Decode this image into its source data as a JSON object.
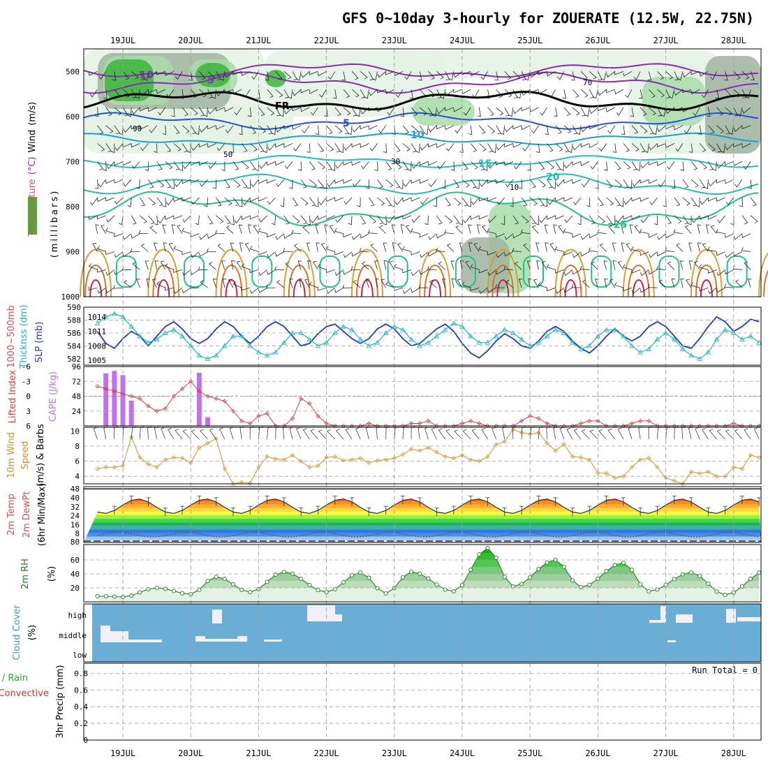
{
  "title": "GFS 0~10day 3-hourly for ZOUERATE (12.5W, 22.75N)",
  "colors": {
    "rh_green": "#3cb43c",
    "rh_lightgreen": "#a8dca8",
    "rh_palegreen": "#e4f2e4",
    "rh_grey": "#a0b4a0",
    "slp": "#1c3cd0",
    "thickness": "#20b8c0",
    "cape": "#c070f0",
    "lifted_index": "#dc3c3c",
    "wind_speed": "#e09020",
    "barb": "#000000",
    "rh2m_line": "#208020",
    "rh2m_fill": "#40c840",
    "cloud": "#6aaed6",
    "cloud_white": "#f0f0f8",
    "grid": "#a0a0a0",
    "temp_stripes": [
      "#6a3a30",
      "#9a1010",
      "#e02010",
      "#f05818",
      "#ff8c1c",
      "#ffb02a",
      "#ffd83a",
      "#f0ff40",
      "#9cf040",
      "#40d840",
      "#20b060",
      "#3ab0a8",
      "#2a7ae0",
      "#4090f0",
      "#9cc8f0",
      "#e8e8f8"
    ]
  },
  "chart_data": [
    {
      "type": "contour",
      "panel": "upper-air",
      "ylabel_parts": [
        "RH (%)",
        "Temperature",
        "(°C)",
        "Wind",
        "(m/s)"
      ],
      "ylabel_units": "(millibars)",
      "y_ticks": [
        500,
        600,
        700,
        800,
        900,
        1000
      ],
      "ylim": [
        1000,
        450
      ],
      "x_dates": [
        "19JUL",
        "20JUL",
        "21JUL",
        "22JUL",
        "23JUL",
        "24JUL",
        "25JUL",
        "26JUL",
        "27JUL",
        "28JUL"
      ],
      "rh_shading": [
        "10",
        "30",
        "50",
        "70",
        "90"
      ],
      "temperature_contours": [
        {
          "value": -10,
          "label": "10",
          "level": 498,
          "amp": 8
        },
        {
          "value": -5,
          "label": "5",
          "level": 525,
          "amp": 10
        },
        {
          "value": 0,
          "label": "FR",
          "level": 565,
          "amp": 10
        },
        {
          "value": 5,
          "label": "5",
          "level": 610,
          "amp": 8
        },
        {
          "value": 10,
          "label": "10",
          "level": 650,
          "amp": 6
        },
        {
          "value": 15,
          "label": "15",
          "level": 700,
          "amp": 6
        },
        {
          "value": 20,
          "label": "20",
          "level": 750,
          "amp": 10
        },
        {
          "value": 25,
          "label": "25",
          "level": 805,
          "amp": 18
        }
      ]
    },
    {
      "type": "line",
      "panel": "slp-thickness",
      "ylabel": [
        "1000~500mb",
        "Thicknss (dm)",
        "SLP (mb)"
      ],
      "y_left_ticks": [
        582,
        584,
        586,
        588,
        590
      ],
      "y_right_ticks": [
        1005,
        1008,
        1011,
        1014
      ],
      "series": [
        {
          "name": "SLP (mb)",
          "axis": "right",
          "values": [
            1011,
            1008.5,
            1007.5,
            1009.5,
            1011,
            1010,
            1008,
            1010,
            1012,
            1013,
            1011.5,
            1009.5,
            1008.5,
            1009.5,
            1011.5,
            1013,
            1012,
            1010,
            1008.5,
            1010,
            1012,
            1013,
            1012,
            1010,
            1008,
            1008.5,
            1010.5,
            1012,
            1012.5,
            1011,
            1009.5,
            1008.5,
            1009.5,
            1011.5,
            1012.5,
            1011.5,
            1009.5,
            1008,
            1008.5,
            1010,
            1011.5,
            1012.5,
            1011,
            1008.5,
            1006.5,
            1005.5,
            1007,
            1009,
            1010.5,
            1009.5,
            1008,
            1007.5,
            1009,
            1011,
            1012,
            1011,
            1009,
            1007.5,
            1006.5,
            1008,
            1010,
            1011.5,
            1010,
            1009,
            1010,
            1012,
            1013,
            1012,
            1010,
            1008,
            1007.5,
            1009.5,
            1012,
            1014,
            1013,
            1011,
            1012,
            1013.5,
            1013,
            1013
          ]
        },
        {
          "name": "1000~500mb Thicknss (dm)",
          "axis": "left",
          "values": [
            587.5,
            588.5,
            589,
            588.5,
            587,
            585.5,
            584.5,
            585,
            586,
            586.5,
            585.5,
            584,
            582.5,
            582,
            582.5,
            584,
            585.5,
            585.5,
            584,
            583,
            582.5,
            583,
            584.5,
            586,
            586,
            585,
            584,
            584.5,
            586,
            587,
            586.5,
            585,
            584,
            584.5,
            586,
            587,
            586.5,
            585,
            584,
            584.5,
            585.5,
            586.5,
            587.5,
            587,
            585.5,
            584.5,
            584.5,
            585.5,
            586.5,
            586,
            585,
            584,
            584.5,
            585.5,
            586.5,
            586,
            584.5,
            583.5,
            584,
            585.5,
            586.5,
            586.5,
            585.5,
            584,
            583,
            583.5,
            585,
            586,
            585,
            583.5,
            582.5,
            582,
            583,
            585,
            586.5,
            586,
            585,
            585.5,
            584.5,
            584
          ]
        }
      ]
    },
    {
      "type": "bar+line",
      "panel": "cape-li",
      "ylabel": [
        "Lifted Index",
        "CAPE (J/kg)"
      ],
      "y_left_ticks": [
        "6",
        "3",
        "0",
        "-3",
        "-6"
      ],
      "y_right_ticks": [
        24,
        48,
        72,
        96
      ],
      "series": [
        {
          "name": "CAPE (J/kg)",
          "axis": "right",
          "bars": [
            [
              1,
              85
            ],
            [
              2,
              89
            ],
            [
              3,
              82
            ],
            [
              4,
              41
            ],
            [
              12,
              86
            ],
            [
              13,
              14
            ]
          ]
        },
        {
          "name": "Lifted Index",
          "axis": "left",
          "values": [
            -2,
            -1.5,
            -1,
            -0.5,
            0,
            0.5,
            2,
            3,
            2.5,
            0,
            -1.5,
            -3,
            -1,
            0,
            0.5,
            1,
            3,
            5,
            5.5,
            4,
            3.5,
            6.5,
            6,
            4.5,
            0.5,
            1.5,
            4,
            5.5,
            6.5,
            7,
            6.5,
            6,
            5.5,
            6.5,
            7,
            7,
            6.5,
            5.5,
            5.5,
            5,
            6.5,
            7,
            6.5,
            5.5,
            5,
            5.5,
            6.5,
            7,
            7,
            6.5,
            5,
            4,
            4.5,
            5.5,
            6,
            6.5,
            6.5,
            5.5,
            5,
            5,
            6,
            6.5,
            6,
            5.5,
            5,
            5,
            6,
            6.5,
            6.5,
            6,
            6,
            6.5,
            7,
            7,
            6.5,
            5.5,
            6.5,
            7,
            7,
            7
          ]
        }
      ]
    },
    {
      "type": "line",
      "panel": "wind10m",
      "ylabel": [
        "10m Wind",
        "Speed",
        "(m/s) & Barbs"
      ],
      "y_ticks": [
        4,
        6,
        8,
        10
      ],
      "series": [
        {
          "name": "10m Wind Speed (m/s)",
          "values": [
            5,
            5.2,
            5.2,
            5.4,
            9.2,
            6.5,
            5.6,
            5.2,
            6.2,
            6.5,
            6.4,
            5.8,
            7.8,
            8.4,
            9.0,
            5.0,
            3.0,
            3.2,
            3.1,
            5.2,
            6.6,
            6.3,
            6.2,
            6.8,
            6.0,
            5.2,
            5.4,
            6.5,
            6.6,
            6.1,
            6.2,
            6.4,
            5.8,
            6.1,
            6.2,
            6.4,
            6.9,
            7.6,
            7.4,
            7.8,
            7.2,
            6.6,
            6.4,
            6.8,
            6.2,
            6.0,
            6.6,
            8.2,
            8.6,
            10.2,
            9.8,
            9.6,
            9.8,
            8.4,
            7.4,
            8.3,
            6.6,
            6.5,
            6.2,
            4.4,
            4.4,
            3.8,
            4.0,
            5.2,
            6.2,
            6.4,
            5.2,
            3.8,
            3.4,
            2.6,
            4.6,
            4.4,
            4.6,
            4.0,
            4.0,
            5.2,
            5.0,
            6.8,
            6.5,
            5.8
          ]
        }
      ]
    },
    {
      "type": "area",
      "panel": "temp2m",
      "ylabel": [
        "2m Temp",
        "2m DewPt",
        "(6hr Min/Max)"
      ],
      "y_ticks": [
        8,
        16,
        24,
        32,
        40,
        48
      ],
      "y_bottom_label": "80",
      "series": [
        {
          "name": "2m Temp (°C)",
          "sine": {
            "mean": 32.5,
            "amp": 6.5,
            "phase": 2.2
          }
        },
        {
          "name": "2m DewPt (°C)",
          "sine": {
            "mean": 7,
            "amp": 2.2,
            "phase": 0.4
          }
        }
      ]
    },
    {
      "type": "area",
      "panel": "rh2m",
      "ylabel": [
        "2m RH",
        "(%)"
      ],
      "y_ticks": [
        20,
        40,
        60
      ],
      "series": [
        {
          "name": "2m RH (%)",
          "peaks": [
            [
              1,
              8
            ],
            [
              7,
              20
            ],
            [
              14,
              36
            ],
            [
              22,
              43
            ],
            [
              31,
              42
            ],
            [
              37,
              43
            ],
            [
              46,
              77
            ],
            [
              54,
              60
            ],
            [
              62,
              56
            ],
            [
              70,
              42
            ],
            [
              79,
              45
            ]
          ],
          "troughs": [
            [
              3,
              7
            ],
            [
              11,
              11
            ],
            [
              18,
              14
            ],
            [
              27,
              14
            ],
            [
              34,
              12
            ],
            [
              42,
              15
            ],
            [
              49,
              22
            ],
            [
              57,
              21
            ],
            [
              65,
              15
            ],
            [
              74,
              10
            ]
          ]
        }
      ]
    },
    {
      "type": "bar",
      "panel": "cloud",
      "ylabel": [
        "Cloud Cover",
        "(%)"
      ],
      "y_tick_labels": [
        "high",
        "middle",
        "low"
      ]
    },
    {
      "type": "bar",
      "panel": "precip",
      "ylabel": [
        "Total / Rain",
        "Convective",
        "3hr Precip (mm)"
      ],
      "y_ticks": [
        "0",
        "0.2",
        "0.4",
        "0.6",
        "0.8"
      ],
      "note": "Run Total = 0",
      "values": []
    }
  ]
}
